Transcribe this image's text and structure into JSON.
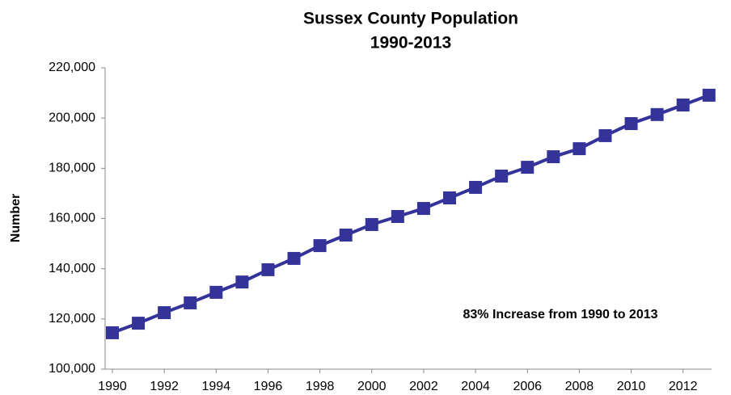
{
  "chart_data": {
    "type": "line",
    "title": "Sussex County Population",
    "subtitle": "1990-2013",
    "y_label": "Number",
    "annotation": "83% Increase  from  1990  to  2013",
    "x": [
      1990,
      1991,
      1992,
      1993,
      1994,
      1995,
      1996,
      1997,
      1998,
      1999,
      2000,
      2001,
      2002,
      2003,
      2004,
      2005,
      2006,
      2007,
      2008,
      2009,
      2010,
      2011,
      2012,
      2013
    ],
    "series": [
      {
        "name": "Population",
        "color": "#333399",
        "values": [
          114500,
          118300,
          122500,
          126400,
          130600,
          134700,
          139600,
          144100,
          149200,
          153400,
          157600,
          160800,
          164000,
          168200,
          172400,
          176900,
          180400,
          184600,
          187800,
          193000,
          197800,
          201400,
          205200,
          209100
        ]
      }
    ],
    "xlim": [
      1989.72,
      2013.1
    ],
    "xticks": [
      1990,
      1992,
      1994,
      1996,
      1998,
      2000,
      2002,
      2004,
      2006,
      2008,
      2010,
      2012
    ],
    "ylim": [
      100000,
      220000
    ],
    "yticks": [
      {
        "value": 100000,
        "label": "100,000"
      },
      {
        "value": 120000,
        "label": "120,000"
      },
      {
        "value": 140000,
        "label": "140,000"
      },
      {
        "value": 160000,
        "label": "160,000"
      },
      {
        "value": 180000,
        "label": "180,000"
      },
      {
        "value": 200000,
        "label": "200,000"
      },
      {
        "value": 220000,
        "label": "220,000"
      }
    ],
    "grid": false
  }
}
